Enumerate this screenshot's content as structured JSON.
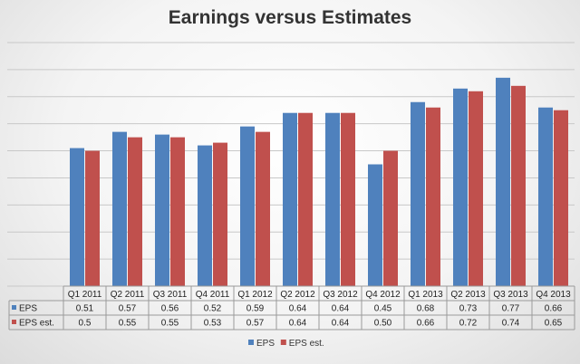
{
  "chart_data": {
    "type": "bar",
    "title": "Earnings versus Estimates",
    "categories": [
      "Q1 2011",
      "Q2 2011",
      "Q3 2011",
      "Q4 2011",
      "Q1 2012",
      "Q2 2012",
      "Q3 2012",
      "Q4 2012",
      "Q1 2013",
      "Q2 2013",
      "Q3 2013",
      "Q4 2013"
    ],
    "series": [
      {
        "name": "EPS",
        "color": "#4f81bd",
        "values": [
          0.51,
          0.57,
          0.56,
          0.52,
          0.59,
          0.64,
          0.64,
          0.45,
          0.68,
          0.73,
          0.77,
          0.66
        ],
        "labels": [
          "0.51",
          "0.57",
          "0.56",
          "0.52",
          "0.59",
          "0.64",
          "0.64",
          "0.45",
          "0.68",
          "0.73",
          "0.77",
          "0.66"
        ]
      },
      {
        "name": "EPS est.",
        "color": "#c0504d",
        "values": [
          0.5,
          0.55,
          0.55,
          0.53,
          0.57,
          0.64,
          0.64,
          0.5,
          0.66,
          0.72,
          0.74,
          0.65
        ],
        "labels": [
          "0.5",
          "0.55",
          "0.55",
          "0.53",
          "0.57",
          "0.64",
          "0.64",
          "0.50",
          "0.66",
          "0.72",
          "0.74",
          "0.65"
        ]
      }
    ],
    "ylim": [
      0,
      0.9
    ],
    "grid": true,
    "data_table": true,
    "legend_position": "bottom"
  }
}
